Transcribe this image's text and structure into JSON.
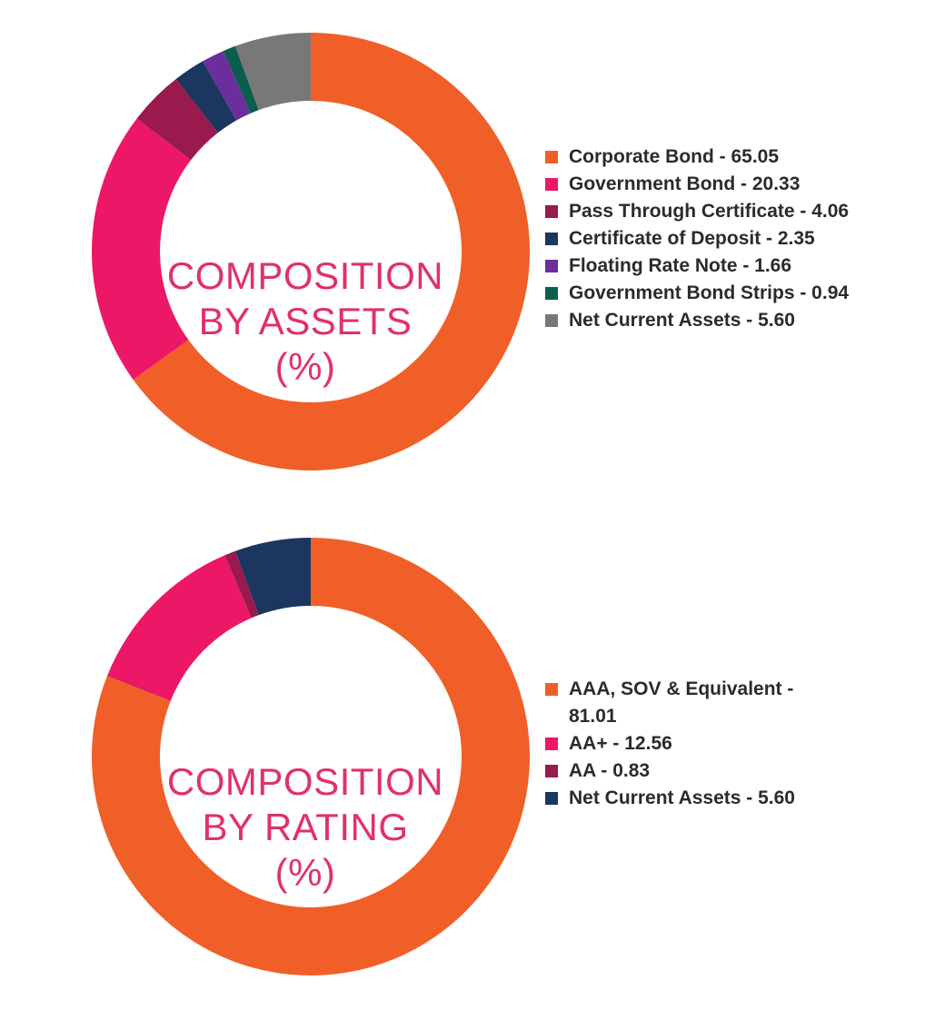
{
  "chart_data": [
    {
      "type": "pie",
      "title": "COMPOSITION BY ASSETS (%)",
      "title_lines": [
        "COMPOSITION",
        "BY ASSETS",
        "(%)"
      ],
      "legend_position": "right",
      "slices": [
        {
          "label": "Corporate Bond - 65.05",
          "name": "Corporate Bond",
          "value": 65.05,
          "color": "#f05f28"
        },
        {
          "label": "Government Bond - 20.33",
          "name": "Government Bond",
          "value": 20.33,
          "color": "#ec1766"
        },
        {
          "label": "Pass Through Certificate - 4.06",
          "name": "Pass Through Certificate",
          "value": 4.06,
          "color": "#9a1a4d"
        },
        {
          "label": "Certificate of Deposit - 2.35",
          "name": "Certificate of Deposit",
          "value": 2.35,
          "color": "#1b365f"
        },
        {
          "label": "Floating Rate Note - 1.66",
          "name": "Floating Rate Note",
          "value": 1.66,
          "color": "#6c2e9c"
        },
        {
          "label": "Government Bond Strips - 0.94",
          "name": "Government Bond Strips",
          "value": 0.94,
          "color": "#0b5e4e"
        },
        {
          "label": "Net Current Assets - 5.60",
          "name": "Net Current Assets",
          "value": 5.6,
          "color": "#787878"
        }
      ]
    },
    {
      "type": "pie",
      "title": "COMPOSITION BY RATING (%)",
      "title_lines": [
        "COMPOSITION",
        "BY RATING",
        "(%)"
      ],
      "legend_position": "right",
      "slices": [
        {
          "label": "AAA, SOV & Equivalent - 81.01",
          "name": "AAA, SOV & Equivalent",
          "value": 81.01,
          "color": "#f05f28"
        },
        {
          "label": "AA+ - 12.56",
          "name": "AA+",
          "value": 12.56,
          "color": "#ec1766"
        },
        {
          "label": "AA - 0.83",
          "name": "AA",
          "value": 0.83,
          "color": "#9a1a4d"
        },
        {
          "label": "Net Current Assets - 5.60",
          "name": "Net Current Assets",
          "value": 5.6,
          "color": "#1b365f"
        }
      ]
    }
  ]
}
